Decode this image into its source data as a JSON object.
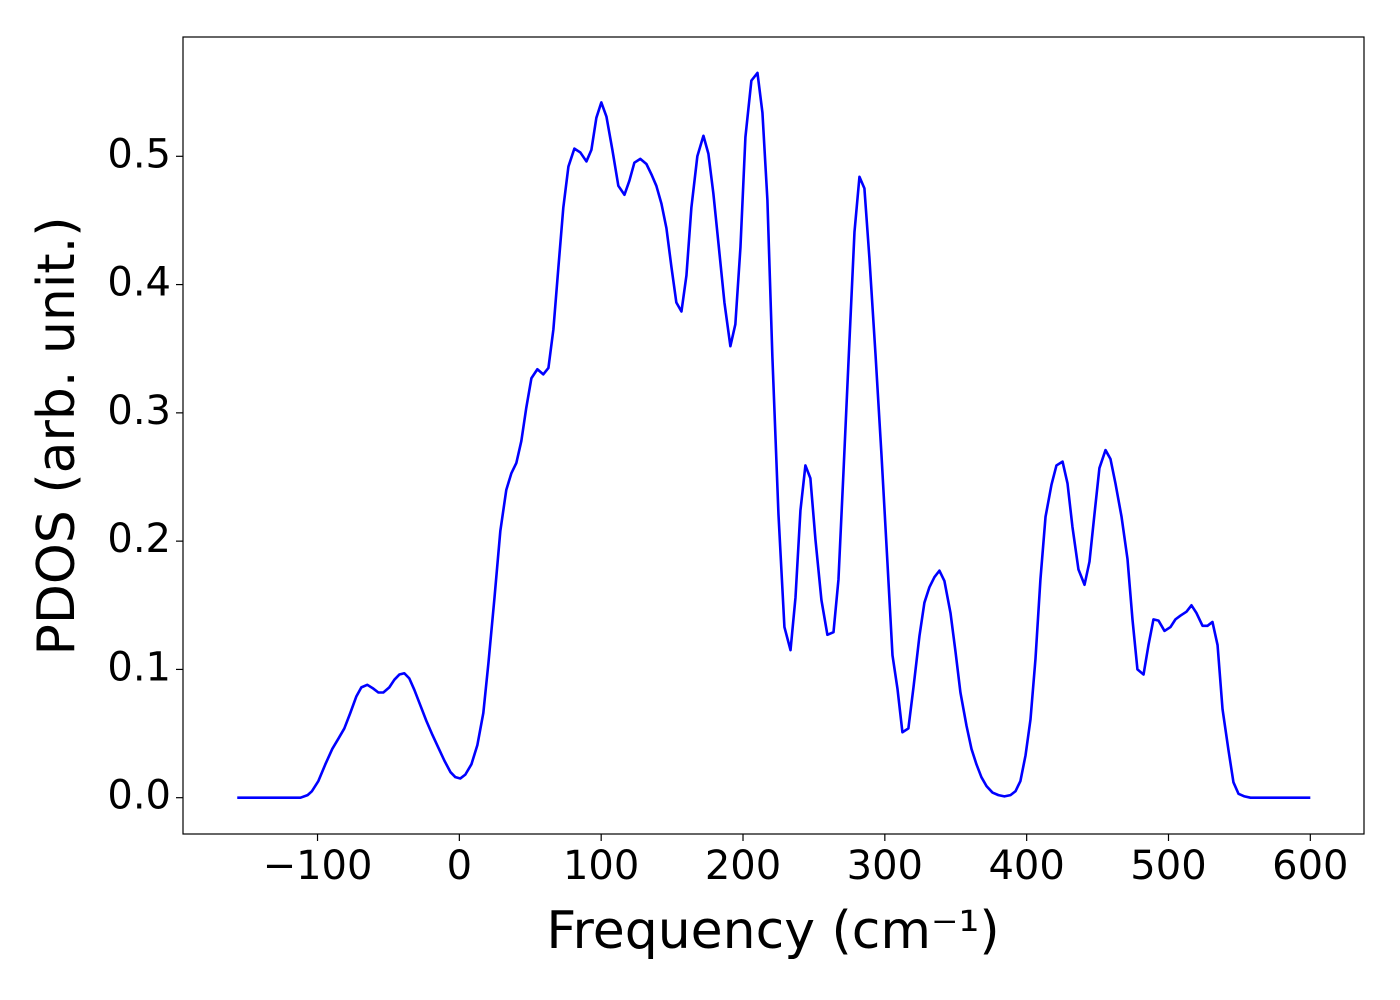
{
  "chart_data": {
    "type": "line",
    "x_label": "Frequency (cm⁻¹)",
    "y_label": "PDOS (arb. unit.)",
    "color": "#0000ff",
    "x": [
      -156.6,
      -112,
      -107,
      -104,
      -99.4,
      -94.5,
      -89.6,
      -85.3,
      -81.1,
      -76.9,
      -72.6,
      -69.1,
      -64.9,
      -60.6,
      -57.1,
      -53.6,
      -49.4,
      -45.8,
      -42.3,
      -38.8,
      -35.3,
      -31.7,
      -27.5,
      -23.3,
      -19.0,
      -14.8,
      -10.6,
      -6.3,
      -2.8,
      0.7,
      4.2,
      8.5,
      12.7,
      16.9,
      20.5,
      24.7,
      28.9,
      33.1,
      36.7,
      40.2,
      43.7,
      47.2,
      50.8,
      55.0,
      59.2,
      62.8,
      66.3,
      69.8,
      73.3,
      76.9,
      81.1,
      85.3,
      89.6,
      93.1,
      96.6,
      100.1,
      103.7,
      107.9,
      112.1,
      116.4,
      119.9,
      123.4,
      127.6,
      131.9,
      135.4,
      138.9,
      142.5,
      146.0,
      149.5,
      153.0,
      156.6,
      160.1,
      163.6,
      167.8,
      172.1,
      175.6,
      179.1,
      182.7,
      186.9,
      191.1,
      194.6,
      198.2,
      201.7,
      205.9,
      210.2,
      213.7,
      217.2,
      220.7,
      225.0,
      229.2,
      233.5,
      237.0,
      240.5,
      244.0,
      247.5,
      251.1,
      255.3,
      259.5,
      263.8,
      267.3,
      270.8,
      275.0,
      278.6,
      282.1,
      285.6,
      289.1,
      293.4,
      297.6,
      301.8,
      305.4,
      308.9,
      312.4,
      316.6,
      320.2,
      324.4,
      327.9,
      331.4,
      335.0,
      338.5,
      342.0,
      346.3,
      349.8,
      353.3,
      357.6,
      361.1,
      364.6,
      368.1,
      371.7,
      375.9,
      380.1,
      384.3,
      388.6,
      392.1,
      395.6,
      399.2,
      402.7,
      406.2,
      409.7,
      413.3,
      417.5,
      421.0,
      425.3,
      428.8,
      432.3,
      436.5,
      440.8,
      444.3,
      447.8,
      451.3,
      455.6,
      459.1,
      462.6,
      466.9,
      471.1,
      474.6,
      478.1,
      482.4,
      485.9,
      489.4,
      493.0,
      497.2,
      501.4,
      504.9,
      508.5,
      512.7,
      516.2,
      519.7,
      524.0,
      527.5,
      531.0,
      534.6,
      538.1,
      542.3,
      545.8,
      549.4,
      553.6,
      557.8,
      600
    ],
    "values": [
      0,
      0,
      0.002,
      0.005,
      0.013,
      0.026,
      0.038,
      0.046,
      0.054,
      0.066,
      0.079,
      0.086,
      0.088,
      0.085,
      0.082,
      0.082,
      0.086,
      0.092,
      0.096,
      0.097,
      0.093,
      0.084,
      0.072,
      0.06,
      0.049,
      0.039,
      0.029,
      0.02,
      0.016,
      0.015,
      0.018,
      0.026,
      0.041,
      0.066,
      0.105,
      0.155,
      0.208,
      0.24,
      0.253,
      0.261,
      0.278,
      0.304,
      0.327,
      0.334,
      0.33,
      0.335,
      0.365,
      0.413,
      0.46,
      0.492,
      0.506,
      0.503,
      0.496,
      0.505,
      0.53,
      0.542,
      0.531,
      0.505,
      0.477,
      0.47,
      0.481,
      0.495,
      0.498,
      0.494,
      0.486,
      0.477,
      0.463,
      0.444,
      0.414,
      0.386,
      0.379,
      0.407,
      0.46,
      0.5,
      0.516,
      0.502,
      0.471,
      0.432,
      0.386,
      0.352,
      0.369,
      0.429,
      0.515,
      0.559,
      0.565,
      0.534,
      0.466,
      0.344,
      0.221,
      0.133,
      0.115,
      0.156,
      0.224,
      0.259,
      0.249,
      0.201,
      0.154,
      0.127,
      0.129,
      0.17,
      0.253,
      0.355,
      0.441,
      0.484,
      0.475,
      0.421,
      0.346,
      0.268,
      0.184,
      0.111,
      0.085,
      0.051,
      0.054,
      0.086,
      0.126,
      0.152,
      0.164,
      0.172,
      0.177,
      0.169,
      0.144,
      0.114,
      0.082,
      0.056,
      0.038,
      0.026,
      0.016,
      0.009,
      0.004,
      0.002,
      0.001,
      0.002,
      0.005,
      0.013,
      0.033,
      0.061,
      0.108,
      0.17,
      0.219,
      0.244,
      0.259,
      0.262,
      0.245,
      0.211,
      0.178,
      0.166,
      0.184,
      0.221,
      0.257,
      0.271,
      0.264,
      0.245,
      0.219,
      0.186,
      0.139,
      0.1,
      0.096,
      0.119,
      0.139,
      0.138,
      0.13,
      0.133,
      0.139,
      0.142,
      0.145,
      0.15,
      0.144,
      0.134,
      0.134,
      0.137,
      0.119,
      0.069,
      0.037,
      0.012,
      0.003,
      0.001,
      0,
      0
    ],
    "xlim": [
      -194.85,
      637.85
    ],
    "ylim": [
      -0.0283,
      0.593
    ],
    "xticks": [
      {
        "value": -100,
        "label": "−100"
      },
      0,
      100,
      200,
      300,
      400,
      500,
      600
    ],
    "yticks": [
      {
        "value": 0,
        "label": "0.0"
      },
      0.1,
      0.2,
      0.3,
      0.4,
      0.5
    ]
  }
}
